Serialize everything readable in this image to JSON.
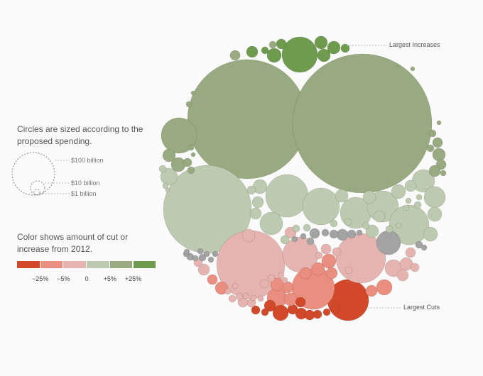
{
  "legend": {
    "size_note": "Circles are sized according to the proposed spending.",
    "size_labels": [
      "$100 billion",
      "$10 billion",
      "$1 billion"
    ],
    "color_note": "Color shows amount of cut or increase from 2012.",
    "color_ticks": [
      "−25%",
      "−5%",
      "0",
      "+5%",
      "+25%"
    ],
    "colors": [
      "#d2492a",
      "#ea8e7f",
      "#e5b3b0",
      "#bccab0",
      "#98ab80",
      "#6e9b4e"
    ]
  },
  "callouts": {
    "increases": "Largest Increases",
    "cuts": "Largest Cuts"
  },
  "chart_data": {
    "type": "bubble",
    "size_metric": "proposed spending",
    "color_metric": "change from 2012",
    "color_scale": [
      {
        "range": "< −25%",
        "color": "#d2492a"
      },
      {
        "range": "−25% to −5%",
        "color": "#ea8e7f"
      },
      {
        "range": "−5% to 0",
        "color": "#e5b3b0"
      },
      {
        "range": "0 to +5%",
        "color": "#bccab0"
      },
      {
        "range": "+5% to +25%",
        "color": "#98ab80"
      },
      {
        "range": "> +25%",
        "color": "#6e9b4e"
      }
    ]
  }
}
